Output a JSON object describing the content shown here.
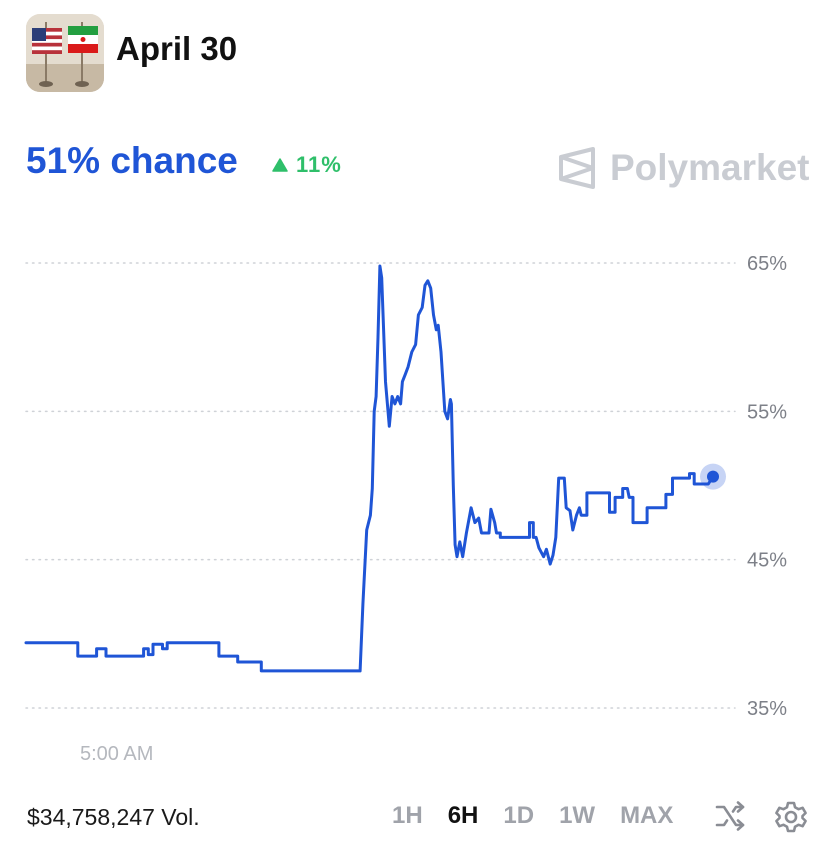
{
  "header": {
    "title": "April 30",
    "thumbnail_icon": "us-iran-flags-image"
  },
  "summary": {
    "chance": "51% chance",
    "delta": "11%",
    "delta_direction": "up",
    "brand": "Polymarket",
    "brand_icon": "polymarket-logo-icon"
  },
  "chart_data": {
    "type": "line",
    "title": "",
    "xlabel": "",
    "ylabel": "",
    "y_unit": "%",
    "ylim": [
      32,
      67
    ],
    "yticks": [
      65,
      55,
      45,
      35
    ],
    "ytick_labels": [
      "65%",
      "55%",
      "45%",
      "35%"
    ],
    "x_tick_labels": [
      "5:00 AM"
    ],
    "grid": "dotted horizontal",
    "color": "#1f55d6",
    "series": [
      {
        "values": [
          [
            0,
            39.4
          ],
          [
            5.5,
            39.4
          ],
          [
            5.5,
            38.5
          ],
          [
            7.5,
            38.5
          ],
          [
            7.5,
            39
          ],
          [
            8.5,
            39
          ],
          [
            8.5,
            38.5
          ],
          [
            12.5,
            38.5
          ],
          [
            12.5,
            39
          ],
          [
            13,
            39
          ],
          [
            13,
            38.6
          ],
          [
            13.5,
            38.6
          ],
          [
            13.5,
            39.3
          ],
          [
            14.5,
            39.3
          ],
          [
            14.5,
            39
          ],
          [
            15,
            39
          ],
          [
            15,
            39.4
          ],
          [
            20.5,
            39.4
          ],
          [
            20.5,
            38.5
          ],
          [
            22.5,
            38.5
          ],
          [
            22.5,
            38.1
          ],
          [
            25,
            38.1
          ],
          [
            25,
            37.5
          ],
          [
            35.5,
            37.5
          ],
          [
            35.5,
            37.5
          ],
          [
            35.8,
            42
          ],
          [
            36.2,
            47
          ],
          [
            36.6,
            48
          ],
          [
            36.8,
            49.8
          ],
          [
            37,
            55
          ],
          [
            37.2,
            56
          ],
          [
            37.4,
            60
          ],
          [
            37.6,
            64.8
          ],
          [
            37.8,
            64
          ],
          [
            38.2,
            57
          ],
          [
            38.6,
            54
          ],
          [
            38.9,
            56
          ],
          [
            39.2,
            55.5
          ],
          [
            39.5,
            56
          ],
          [
            39.8,
            55.5
          ],
          [
            40,
            57
          ],
          [
            40.3,
            57.5
          ],
          [
            40.6,
            58
          ],
          [
            41,
            59
          ],
          [
            41.4,
            59.5
          ],
          [
            41.7,
            61.5
          ],
          [
            42.1,
            62
          ],
          [
            42.4,
            63.5
          ],
          [
            42.7,
            63.8
          ],
          [
            43,
            63.3
          ],
          [
            43.3,
            61.5
          ],
          [
            43.6,
            60.5
          ],
          [
            43.8,
            60.8
          ],
          [
            44.1,
            59
          ],
          [
            44.3,
            57
          ],
          [
            44.5,
            55
          ],
          [
            44.8,
            54.5
          ],
          [
            45.1,
            55.8
          ],
          [
            45.2,
            55.5
          ],
          [
            45.4,
            50
          ],
          [
            45.6,
            46
          ],
          [
            45.8,
            45.2
          ],
          [
            46.1,
            46.2
          ],
          [
            46.4,
            45.2
          ],
          [
            46.8,
            46.8
          ],
          [
            47.3,
            48.5
          ],
          [
            47.7,
            47.5
          ],
          [
            48.1,
            47.8
          ],
          [
            48.4,
            46.8
          ],
          [
            49.2,
            46.8
          ],
          [
            49.4,
            48.4
          ],
          [
            49.8,
            47.5
          ],
          [
            50,
            46.8
          ],
          [
            50.4,
            46.8
          ],
          [
            50.4,
            46.5
          ],
          [
            53.5,
            46.5
          ],
          [
            53.5,
            47.5
          ],
          [
            53.9,
            47.5
          ],
          [
            53.9,
            46.5
          ],
          [
            54.2,
            46.5
          ],
          [
            54.5,
            45.8
          ],
          [
            55,
            45.2
          ],
          [
            55.3,
            45.7
          ],
          [
            55.7,
            44.7
          ],
          [
            56,
            45.3
          ],
          [
            56.3,
            46.5
          ],
          [
            56.6,
            50.5
          ],
          [
            57.2,
            50.5
          ],
          [
            57.4,
            48.5
          ],
          [
            57.8,
            48.3
          ],
          [
            58.1,
            47
          ],
          [
            58.5,
            48
          ],
          [
            58.8,
            48.5
          ],
          [
            59,
            48
          ],
          [
            59.6,
            48
          ],
          [
            59.6,
            49.5
          ],
          [
            62,
            49.5
          ],
          [
            62,
            48.2
          ],
          [
            62.6,
            48.2
          ],
          [
            62.6,
            49.2
          ],
          [
            63.4,
            49.2
          ],
          [
            63.4,
            49.8
          ],
          [
            63.9,
            49.8
          ],
          [
            64.1,
            49.2
          ],
          [
            64.5,
            49.2
          ],
          [
            64.5,
            47.5
          ],
          [
            66,
            47.5
          ],
          [
            66,
            48.5
          ],
          [
            68,
            48.5
          ],
          [
            68,
            49.4
          ],
          [
            68.7,
            49.4
          ],
          [
            68.7,
            50.5
          ],
          [
            70.5,
            50.5
          ],
          [
            70.5,
            50.8
          ],
          [
            71,
            50.8
          ],
          [
            71,
            50.1
          ],
          [
            72.5,
            50.1
          ],
          [
            73,
            50.6
          ]
        ]
      }
    ],
    "x_domain": [
      0,
      73
    ],
    "current_value": 51
  },
  "footer": {
    "volume": "$34,758,247 Vol.",
    "ranges": [
      {
        "label": "1H",
        "active": false
      },
      {
        "label": "6H",
        "active": true
      },
      {
        "label": "1D",
        "active": false
      },
      {
        "label": "1W",
        "active": false
      },
      {
        "label": "MAX",
        "active": false
      }
    ],
    "icons": [
      "shuffle-icon",
      "settings-gear-icon"
    ]
  }
}
